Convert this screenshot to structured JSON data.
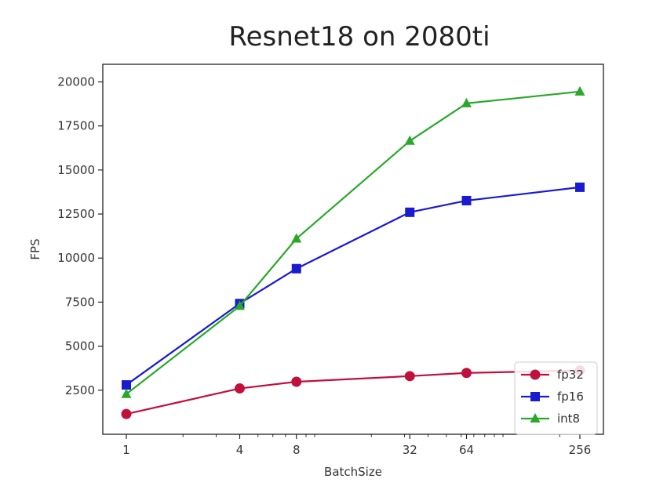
{
  "chart_data": {
    "type": "line",
    "title": "Resnet18 on 2080ti",
    "xlabel": "BatchSize",
    "ylabel": "FPS",
    "x_scale": "log2",
    "x": [
      1,
      4,
      8,
      32,
      64,
      256
    ],
    "x_tick_labels": [
      "1",
      "4",
      "8",
      "32",
      "64",
      "256"
    ],
    "ylim": [
      0,
      21000
    ],
    "y_ticks": [
      2500,
      5000,
      7500,
      10000,
      12500,
      15000,
      17500,
      20000
    ],
    "y_tick_labels": [
      "2500",
      "5000",
      "7500",
      "10000",
      "12500",
      "15000",
      "17500",
      "20000"
    ],
    "grid": false,
    "legend_position": "bottom-right",
    "series": [
      {
        "name": "fp32",
        "color": "#c0103c",
        "marker": "circle",
        "values": [
          1150,
          2600,
          2980,
          3300,
          3480,
          3620
        ]
      },
      {
        "name": "fp16",
        "color": "#1a1ad0",
        "marker": "square",
        "values": [
          2800,
          7420,
          9400,
          12600,
          13260,
          14020
        ]
      },
      {
        "name": "int8",
        "color": "#2aa82a",
        "marker": "triangle",
        "values": [
          2280,
          7280,
          11100,
          16650,
          18780,
          19450
        ]
      }
    ]
  }
}
